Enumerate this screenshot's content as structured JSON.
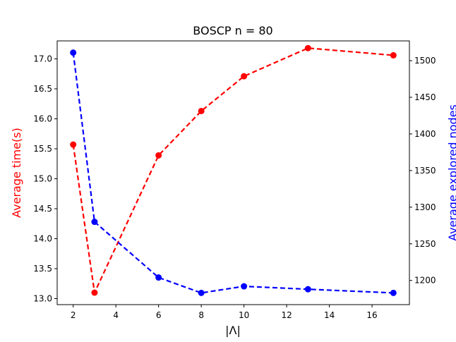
{
  "chart_data": {
    "type": "line",
    "title": "BOSCP n = 80",
    "xlabel": "|Λ|",
    "ylabel_left": "Average time(s)",
    "ylabel_right": "Average explored nodes",
    "x": [
      2,
      3,
      6,
      8,
      10,
      13,
      17
    ],
    "xlim": [
      1.25,
      17.75
    ],
    "ylim_left": [
      12.9,
      17.3
    ],
    "ylim_right": [
      1167,
      1527
    ],
    "xticks": [
      2,
      4,
      6,
      8,
      10,
      12,
      14,
      16
    ],
    "yticks_left": [
      13.0,
      13.5,
      14.0,
      14.5,
      15.0,
      15.5,
      16.0,
      16.5,
      17.0
    ],
    "yticks_right": [
      1200,
      1250,
      1300,
      1350,
      1400,
      1450,
      1500
    ],
    "series": [
      {
        "axis": "left",
        "color": "#ff0000",
        "values": [
          15.57,
          13.1,
          15.39,
          16.13,
          16.71,
          17.18,
          17.06
        ]
      },
      {
        "axis": "right",
        "color": "#0000ff",
        "values": [
          1511,
          1280,
          1204,
          1183,
          1192,
          1188,
          1183
        ]
      }
    ],
    "grid": false,
    "legend": "none",
    "line_style": "dashed",
    "marker": "circle"
  }
}
